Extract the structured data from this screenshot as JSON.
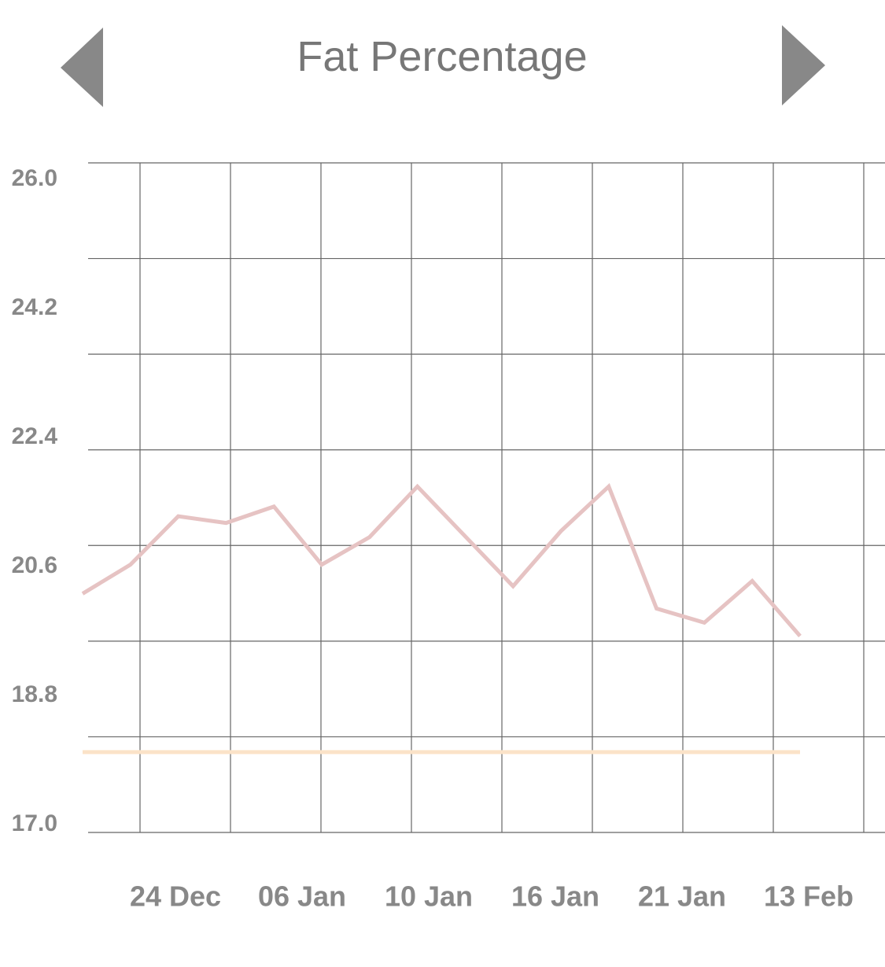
{
  "chart_data": {
    "type": "line",
    "title": "Fat Percentage",
    "ylim": [
      17.0,
      26.0
    ],
    "yticks": [
      {
        "value": 26,
        "label": "26.0"
      },
      {
        "value": 24.2,
        "label": "24.2"
      },
      {
        "value": 22.4,
        "label": "22.4"
      },
      {
        "value": 20.6,
        "label": "20.6"
      },
      {
        "value": 18.8,
        "label": "18.8"
      },
      {
        "value": 17,
        "label": "17.0"
      }
    ],
    "x_labels": [
      "24 Dec",
      "06 Jan",
      "10 Jan",
      "16 Jan",
      "21 Jan",
      "13 Feb"
    ],
    "series": [
      {
        "color": "#e6c3c3",
        "values": [
          20.21,
          20.6,
          21.25,
          21.16,
          21.38,
          20.6,
          20.97,
          21.65,
          20.98,
          20.31,
          21.05,
          21.65,
          20.01,
          19.82,
          20.38,
          19.64
        ]
      },
      {
        "color": "#fbe3c8",
        "values": [
          18.08,
          18.08
        ]
      }
    ]
  }
}
